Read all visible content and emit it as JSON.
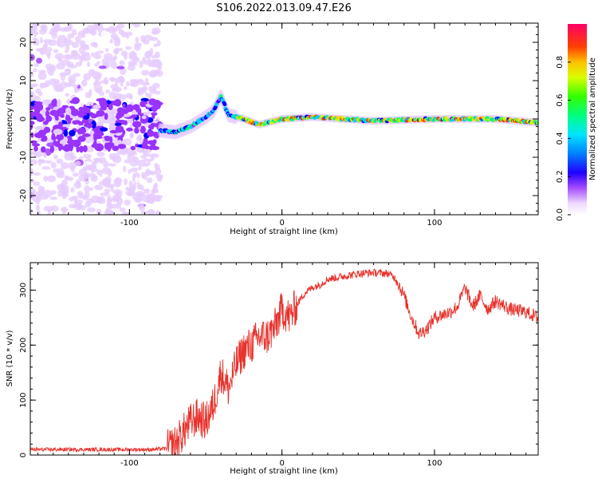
{
  "figure": {
    "title": "S106.2022.013.09.47.E26"
  },
  "chart_data": [
    {
      "type": "heatmap",
      "title": "S106.2022.013.09.47.E26",
      "xlabel": "Height of straight line (km)",
      "ylabel": "Frequency (Hz)",
      "xlim": [
        -165,
        168
      ],
      "ylim": [
        -25,
        25
      ],
      "x_ticks": [
        -100,
        0,
        100
      ],
      "y_ticks": [
        -20,
        -10,
        0,
        10,
        20
      ],
      "colorbar": {
        "label": "Normalized spectral amplitude",
        "range": [
          0,
          1
        ],
        "ticks": [
          0.0,
          0.2,
          0.4,
          0.6,
          0.8
        ],
        "colormap": [
          "#ffffff",
          "#e6ccff",
          "#9933ff",
          "#0000ff",
          "#00ccff",
          "#00ff66",
          "#ccff00",
          "#ffcc00",
          "#ff3300",
          "#ff0066"
        ]
      },
      "ridge": {
        "note_x": [
          -165,
          -120,
          -80,
          -70,
          -60,
          -50,
          -45,
          -40,
          -35,
          -25,
          -15,
          0,
          20,
          60,
          100,
          140,
          168
        ],
        "freq": [
          0.5,
          1.0,
          -3.0,
          -3.5,
          -2.0,
          0.5,
          2.0,
          6.0,
          1.0,
          0.0,
          -1.5,
          0.0,
          0.5,
          -0.5,
          0.0,
          0.0,
          -1.0
        ]
      }
    },
    {
      "type": "line",
      "xlabel": "Height of straight line (km)",
      "ylabel": "SNR (10 * v/v)",
      "xlim": [
        -165,
        168
      ],
      "ylim": [
        0,
        350
      ],
      "x_ticks": [
        -100,
        0,
        100
      ],
      "y_ticks": [
        0,
        100,
        200,
        300
      ],
      "series": [
        {
          "color": "#e8312b",
          "x": [
            -165,
            -140,
            -110,
            -85,
            -75,
            -70,
            -65,
            -60,
            -55,
            -50,
            -45,
            -40,
            -35,
            -30,
            -25,
            -20,
            -15,
            -10,
            -5,
            0,
            5,
            10,
            15,
            20,
            25,
            30,
            40,
            50,
            60,
            70,
            75,
            80,
            85,
            90,
            95,
            100,
            105,
            110,
            115,
            120,
            125,
            130,
            135,
            140,
            150,
            160,
            168
          ],
          "y": [
            10,
            10,
            10,
            10,
            12,
            20,
            40,
            60,
            70,
            60,
            90,
            150,
            120,
            165,
            190,
            200,
            215,
            215,
            230,
            265,
            250,
            275,
            295,
            305,
            310,
            320,
            325,
            330,
            332,
            330,
            320,
            290,
            250,
            220,
            230,
            250,
            255,
            260,
            270,
            305,
            270,
            290,
            265,
            280,
            265,
            260,
            250
          ]
        }
      ]
    }
  ]
}
